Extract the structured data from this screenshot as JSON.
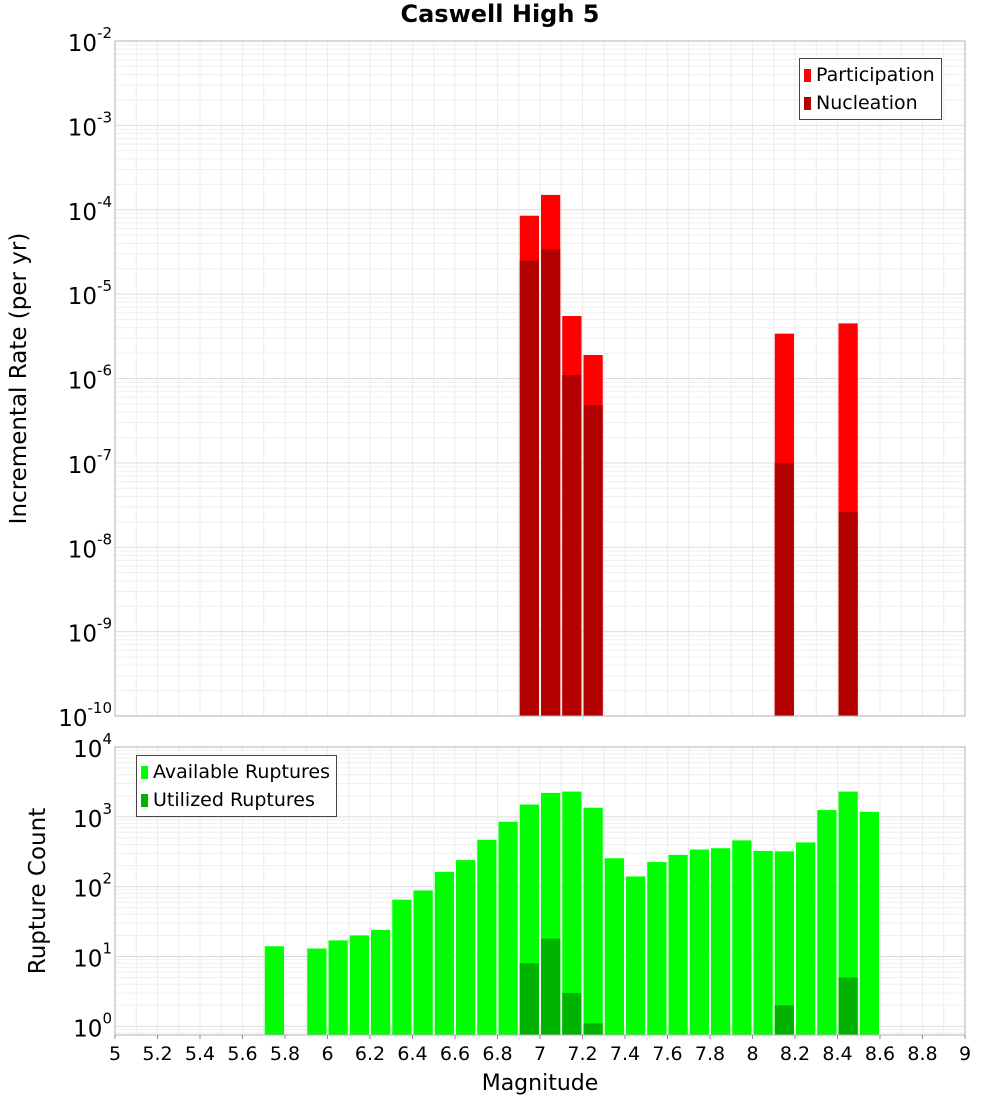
{
  "chart_data": [
    {
      "type": "bar",
      "title": "Caswell High 5",
      "xlabel": "",
      "ylabel": "Incremental Rate (per yr)",
      "xlim": [
        5,
        9
      ],
      "ylim": [
        1e-10,
        0.01
      ],
      "yscale": "log",
      "grid": true,
      "legend_position": "top-right",
      "y_tick_exponents": [
        "-2",
        "-3",
        "-4",
        "-5",
        "-6",
        "-7",
        "-8",
        "-9",
        "-10"
      ],
      "y_tick_base": "10",
      "bin_width": 0.1,
      "series": [
        {
          "name": "Participation",
          "color": "#ff0000",
          "x": [
            6.95,
            7.05,
            7.15,
            7.25,
            8.15,
            8.45
          ],
          "values": [
            8.5e-05,
            0.00015,
            5.5e-06,
            1.9e-06,
            3.4e-06,
            4.5e-06
          ]
        },
        {
          "name": "Nucleation",
          "color": "#b30000",
          "x": [
            6.95,
            7.05,
            7.15,
            7.25,
            8.15,
            8.45
          ],
          "values": [
            2.5e-05,
            3.4e-05,
            1.1e-06,
            4.8e-07,
            9.9e-08,
            2.6e-08
          ]
        }
      ]
    },
    {
      "type": "bar",
      "title": "",
      "xlabel": "Magnitude",
      "ylabel": "Rupture Count",
      "xlim": [
        5,
        9
      ],
      "ylim": [
        0.75,
        10000.0
      ],
      "yscale": "log",
      "grid": true,
      "legend_position": "top-left",
      "x_ticks": [
        "5",
        "5.2",
        "5.4",
        "5.6",
        "5.8",
        "6",
        "6.2",
        "6.4",
        "6.6",
        "6.8",
        "7",
        "7.2",
        "7.4",
        "7.6",
        "7.8",
        "8",
        "8.2",
        "8.4",
        "8.6",
        "8.8",
        "9"
      ],
      "y_tick_exponents": [
        "4",
        "3",
        "2",
        "1",
        "0"
      ],
      "y_tick_base": "10",
      "bin_width": 0.1,
      "series": [
        {
          "name": "Available Ruptures",
          "color": "#00ff00",
          "x": [
            5.75,
            5.95,
            6.05,
            6.15,
            6.25,
            6.35,
            6.45,
            6.55,
            6.65,
            6.75,
            6.85,
            6.95,
            7.05,
            7.15,
            7.25,
            7.35,
            7.45,
            7.55,
            7.65,
            7.75,
            7.85,
            7.95,
            8.05,
            8.15,
            8.25,
            8.35,
            8.45,
            8.55
          ],
          "values": [
            14,
            13,
            17,
            20,
            24,
            65,
            88,
            163,
            240,
            470,
            850,
            1500,
            2200,
            2300,
            1350,
            255,
            140,
            225,
            285,
            340,
            355,
            460,
            325,
            320,
            430,
            1250,
            2300,
            1180
          ]
        },
        {
          "name": "Utilized Ruptures",
          "color": "#00b300",
          "x": [
            6.95,
            7.05,
            7.15,
            7.25,
            8.15,
            8.45
          ],
          "values": [
            8,
            18,
            3,
            1.1,
            2,
            5
          ]
        }
      ]
    }
  ]
}
